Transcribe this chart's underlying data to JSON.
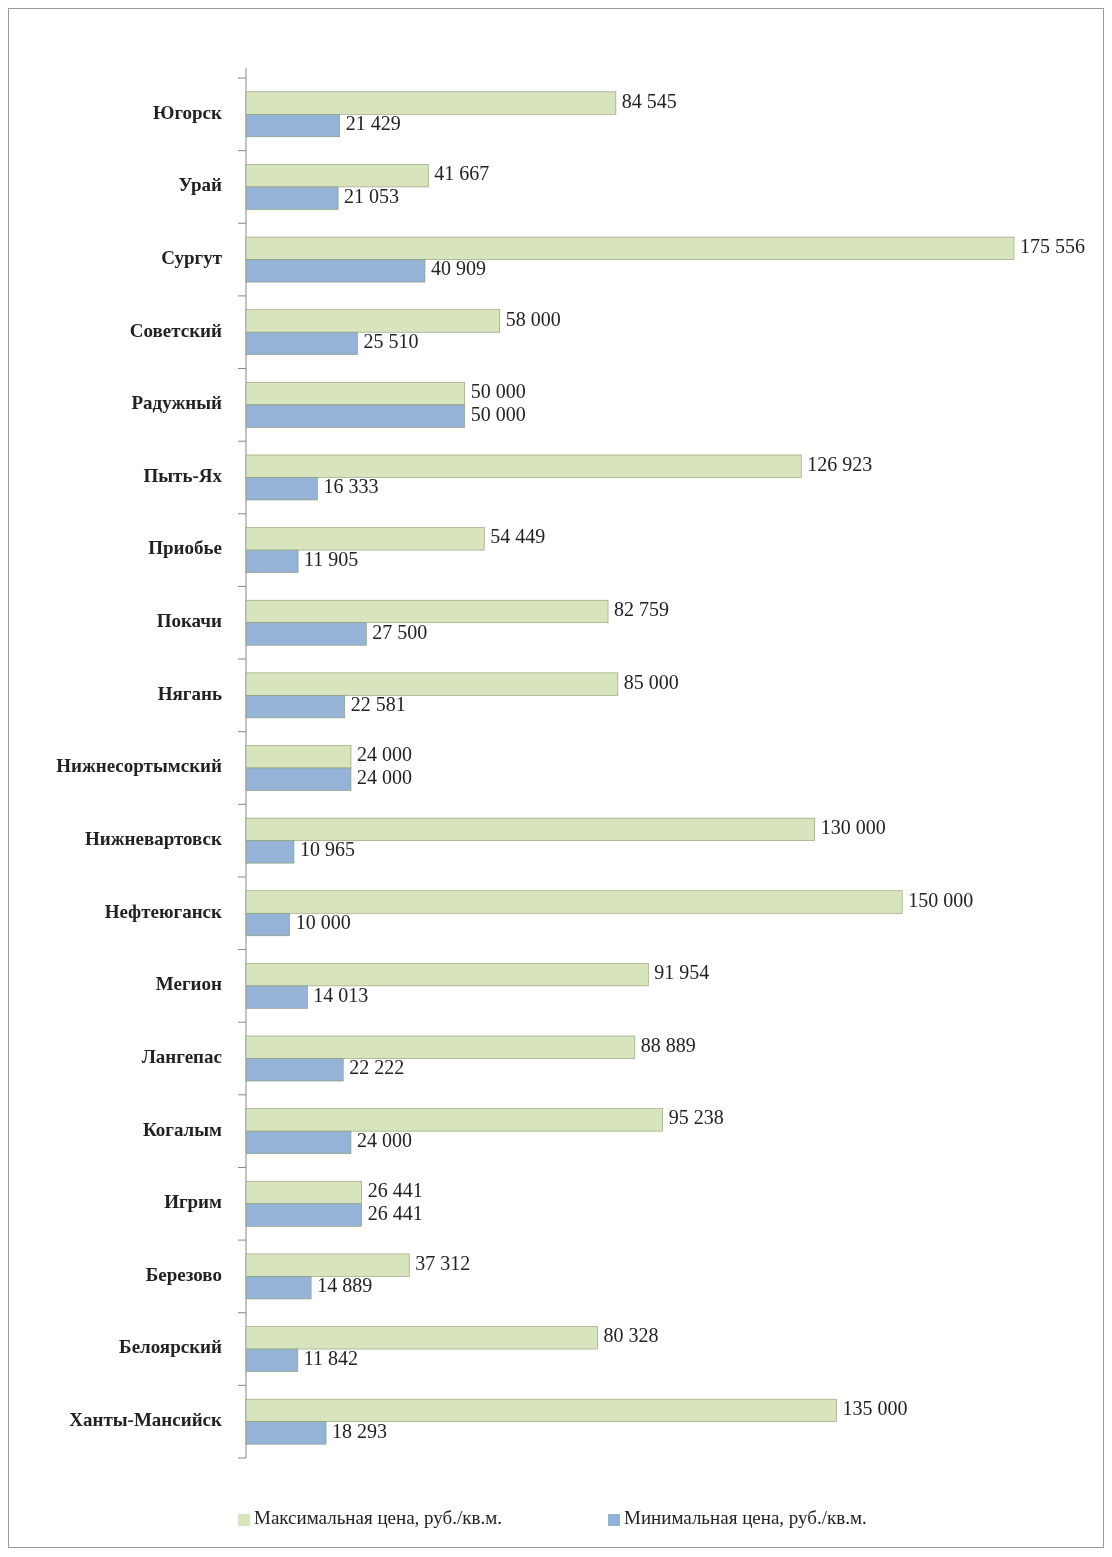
{
  "chart_data": {
    "type": "bar",
    "orientation": "horizontal",
    "categories": [
      "Югорск",
      "Урай",
      "Сургут",
      "Советский",
      "Радужный",
      "Пыть-Ях",
      "Приобье",
      "Покачи",
      "Нягань",
      "Нижнесортымский",
      "Нижневартовск",
      "Нефтеюганск",
      "Мегион",
      "Лангепас",
      "Когалым",
      "Игрим",
      "Березово",
      "Белоярский",
      "Ханты-Мансийск"
    ],
    "series": [
      {
        "name": "Максимальная цена, руб./кв.м.",
        "color": "#d7e4bd",
        "values": [
          84545,
          41667,
          175556,
          58000,
          50000,
          126923,
          54449,
          82759,
          85000,
          24000,
          130000,
          150000,
          91954,
          88889,
          95238,
          26441,
          37312,
          80328,
          135000
        ]
      },
      {
        "name": "Минимальная цена, руб./кв.м.",
        "color": "#95b3d7",
        "values": [
          21429,
          21053,
          40909,
          25510,
          50000,
          16333,
          11905,
          27500,
          22581,
          24000,
          10965,
          10000,
          14013,
          22222,
          24000,
          26441,
          14889,
          11842,
          18293
        ]
      }
    ],
    "data_labels": true,
    "legend": "bottom"
  }
}
